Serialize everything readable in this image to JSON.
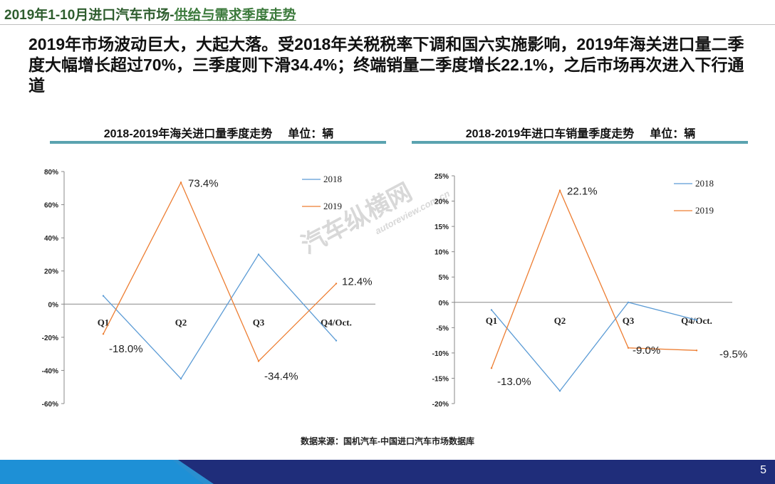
{
  "header": {
    "title_main": "2019年1-10月进口汽车市场-",
    "title_accent": "供给与需求季度走势"
  },
  "headline": "2019年市场波动巨大，大起大落。受2018年关税税率下调和国六实施影响，2019年海关进口量二季度大幅增长超过70%，三季度则下滑34.4%；终端销量二季度增长22.1%，之后市场再次进入下行通道",
  "charts": {
    "left": {
      "title": "2018-2019年海关进口量季度走势",
      "unit": "单位：辆"
    },
    "right": {
      "title": "2018-2019年进口车销量季度走势",
      "unit": "单位：辆"
    }
  },
  "source": "数据来源：国机汽车-中国进口汽车市场数据库",
  "watermark": {
    "main": "汽车纵横网",
    "sub": "autoreview.com.cn"
  },
  "page_number": "5",
  "colors": {
    "series_2018": "#5b9bd5",
    "series_2019": "#ed7d31",
    "rule": "#5aa3b0",
    "footer_dark": "#1f2d7a",
    "footer_light": "#1e90d6"
  },
  "chart_data": [
    {
      "type": "line",
      "title": "2018-2019年海关进口量季度走势",
      "categories": [
        "Q1",
        "Q2",
        "Q3",
        "Q4/Oct."
      ],
      "ylim": [
        -60,
        80
      ],
      "yticks": [
        80,
        60,
        40,
        20,
        0,
        -20,
        -40,
        -60
      ],
      "ytick_labels": [
        "80%",
        "60%",
        "40%",
        "20%",
        "0%",
        "-20%",
        "-40%",
        "-60%"
      ],
      "legend_position": "top-right",
      "series": [
        {
          "name": "2018",
          "values": [
            5,
            -45,
            30,
            -22
          ],
          "labels": [
            null,
            null,
            null,
            null
          ]
        },
        {
          "name": "2019",
          "values": [
            -18.0,
            73.4,
            -34.4,
            12.4
          ],
          "labels": [
            "-18.0%",
            "73.4%",
            "-34.4%",
            "12.4%"
          ]
        }
      ]
    },
    {
      "type": "line",
      "title": "2018-2019年进口车销量季度走势",
      "categories": [
        "Q1",
        "Q2",
        "Q3",
        "Q4/Oct."
      ],
      "ylim": [
        -20,
        25
      ],
      "yticks": [
        25,
        20,
        15,
        10,
        5,
        0,
        -5,
        -10,
        -15,
        -20
      ],
      "ytick_labels": [
        "25%",
        "20%",
        "15%",
        "10%",
        "5%",
        "0%",
        "-5%",
        "-10%",
        "-15%",
        "-20%"
      ],
      "legend_position": "top-right",
      "series": [
        {
          "name": "2018",
          "values": [
            -1.5,
            -17.5,
            0,
            -3.5
          ],
          "labels": [
            null,
            null,
            null,
            null
          ]
        },
        {
          "name": "2019",
          "values": [
            -13.0,
            22.1,
            -9.0,
            -9.5
          ],
          "labels": [
            "-13.0%",
            "22.1%",
            "-9.0%",
            "-9.5%"
          ]
        }
      ]
    }
  ]
}
